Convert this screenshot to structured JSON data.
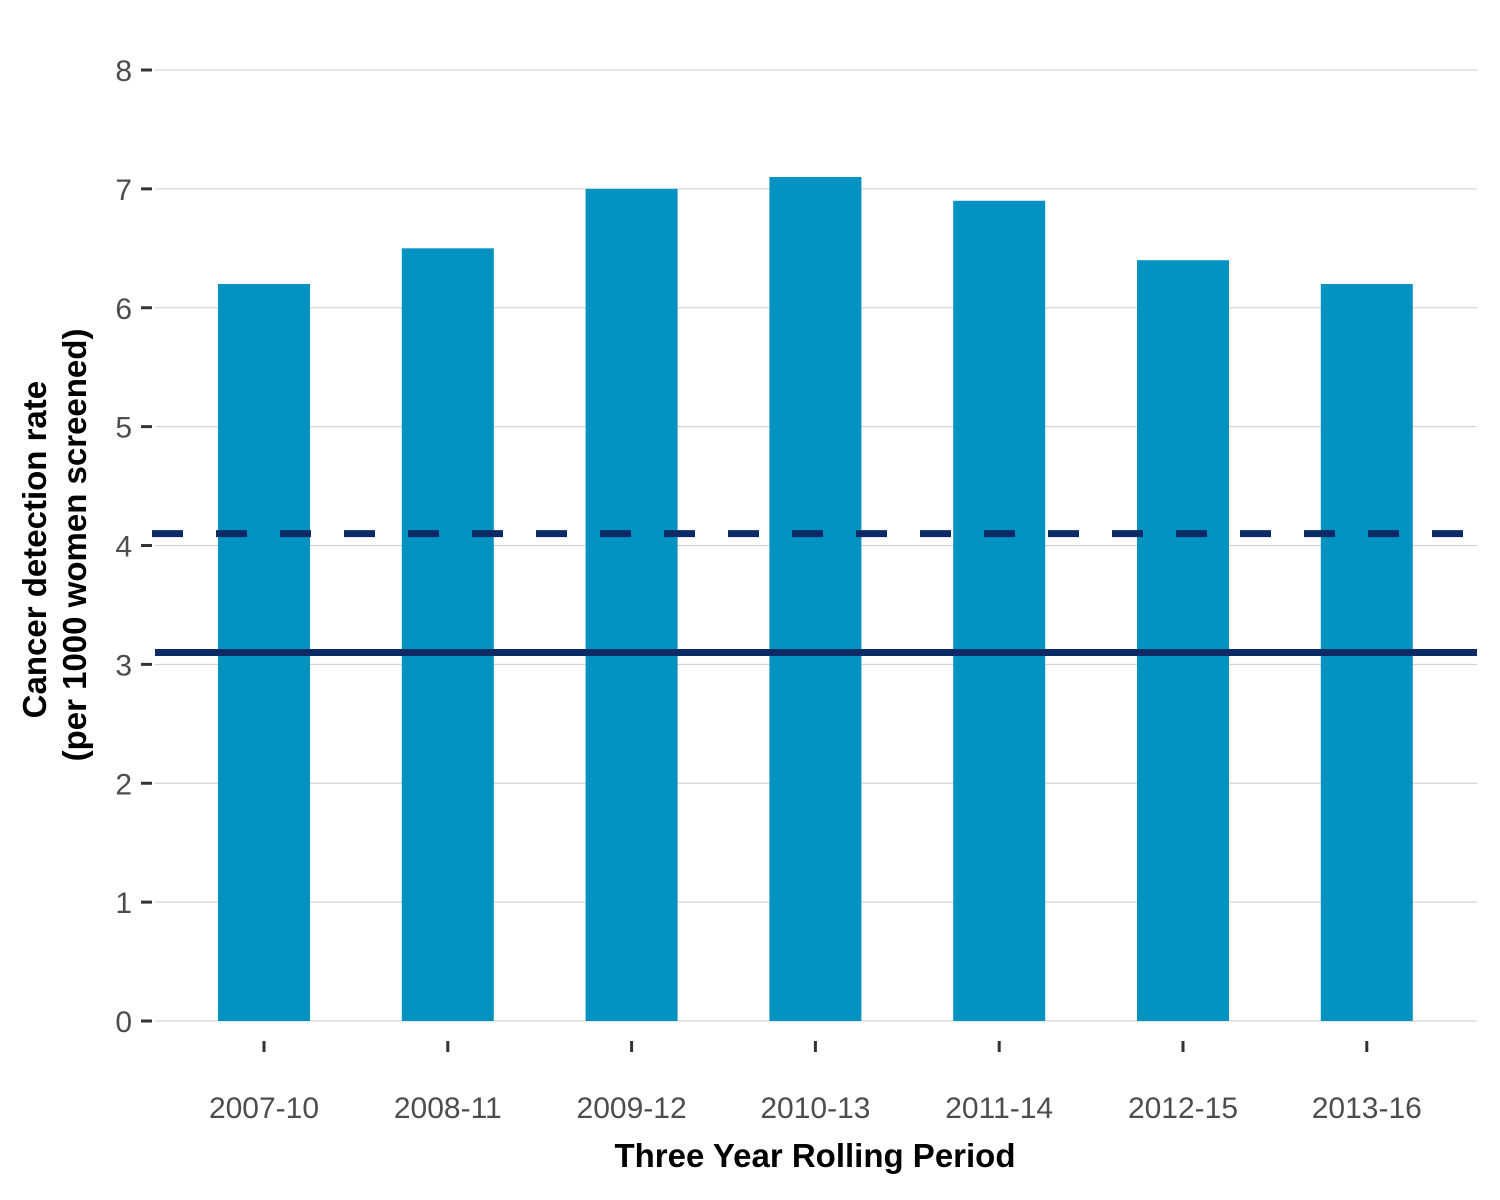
{
  "chart_data": {
    "type": "bar",
    "title": "",
    "xlabel": "Three Year Rolling Period",
    "ylabel_lines": [
      "Cancer detection rate",
      "(per 1000 women screened)"
    ],
    "categories": [
      "2007-10",
      "2008-11",
      "2009-12",
      "2010-13",
      "2011-14",
      "2012-15",
      "2013-16"
    ],
    "values": [
      6.2,
      6.5,
      7.0,
      7.1,
      6.9,
      6.4,
      6.2
    ],
    "ylim": [
      0,
      8
    ],
    "yticks": [
      0,
      1,
      2,
      3,
      4,
      5,
      6,
      7,
      8
    ],
    "grid": true,
    "legend": "none",
    "reference_lines": [
      {
        "value": 4.1,
        "style": "dashed",
        "color": "#0b2a66"
      },
      {
        "value": 3.1,
        "style": "solid",
        "color": "#0b2a66"
      }
    ],
    "colors": {
      "bar": "#0492c0",
      "grid": "#cccccc",
      "tick": "#333333"
    }
  }
}
